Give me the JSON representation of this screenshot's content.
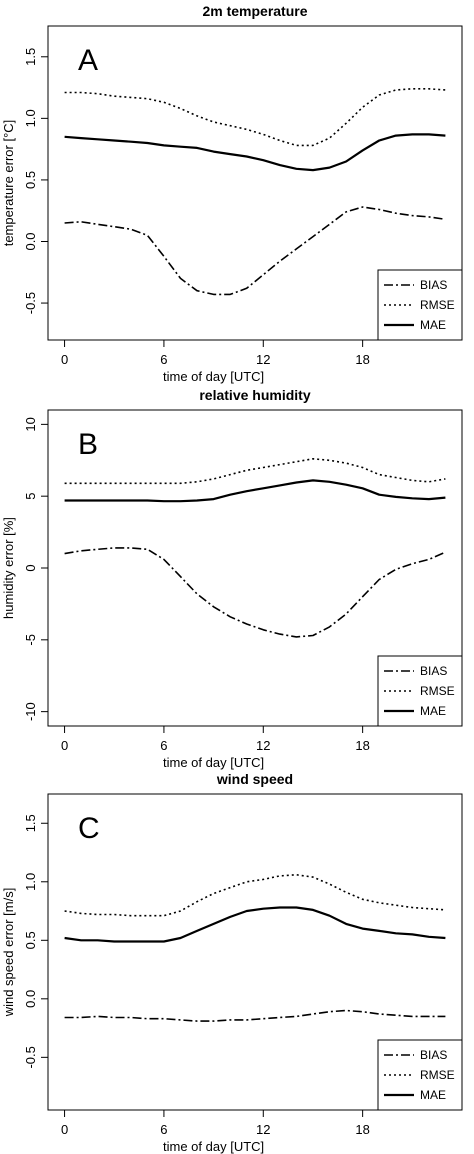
{
  "chart_data": [
    {
      "type": "line",
      "title": "2m temperature",
      "panel_label": "A",
      "xlabel": "time of day [UTC]",
      "ylabel": "temperature error [°C]",
      "xlim": [
        -1,
        24
      ],
      "ylim": [
        -0.8,
        1.75
      ],
      "xticks": [
        0,
        6,
        12,
        18
      ],
      "yticks": [
        -0.5,
        0.0,
        0.5,
        1.0,
        1.5
      ],
      "ytick_labels": [
        "-0.5",
        "0.0",
        "0.5",
        "1.0",
        "1.5"
      ],
      "legend_position": "bottom-right",
      "x": [
        0,
        1,
        2,
        3,
        4,
        5,
        6,
        7,
        8,
        9,
        10,
        11,
        12,
        13,
        14,
        15,
        16,
        17,
        18,
        19,
        20,
        21,
        22,
        23
      ],
      "series": [
        {
          "name": "BIAS",
          "style": "dashdot",
          "values": [
            0.15,
            0.16,
            0.14,
            0.12,
            0.1,
            0.05,
            -0.12,
            -0.3,
            -0.4,
            -0.43,
            -0.43,
            -0.38,
            -0.27,
            -0.16,
            -0.06,
            0.04,
            0.14,
            0.24,
            0.28,
            0.26,
            0.23,
            0.21,
            0.2,
            0.18
          ]
        },
        {
          "name": "RMSE",
          "style": "dotted",
          "values": [
            1.21,
            1.21,
            1.2,
            1.18,
            1.17,
            1.16,
            1.13,
            1.08,
            1.02,
            0.97,
            0.94,
            0.91,
            0.87,
            0.82,
            0.78,
            0.78,
            0.84,
            0.96,
            1.09,
            1.19,
            1.23,
            1.24,
            1.24,
            1.23
          ]
        },
        {
          "name": "MAE",
          "style": "solid",
          "values": [
            0.85,
            0.84,
            0.83,
            0.82,
            0.81,
            0.8,
            0.78,
            0.77,
            0.76,
            0.73,
            0.71,
            0.69,
            0.66,
            0.62,
            0.59,
            0.58,
            0.6,
            0.65,
            0.74,
            0.82,
            0.86,
            0.87,
            0.87,
            0.86
          ]
        }
      ]
    },
    {
      "type": "line",
      "title": "relative humidity",
      "panel_label": "B",
      "xlabel": "time of day [UTC]",
      "ylabel": "humidity error [%]",
      "xlim": [
        -1,
        24
      ],
      "ylim": [
        -11,
        11
      ],
      "xticks": [
        0,
        6,
        12,
        18
      ],
      "yticks": [
        -10,
        -5,
        0,
        5,
        10
      ],
      "ytick_labels": [
        "-10",
        "-5",
        "0",
        "5",
        "10"
      ],
      "legend_position": "bottom-right",
      "x": [
        0,
        1,
        2,
        3,
        4,
        5,
        6,
        7,
        8,
        9,
        10,
        11,
        12,
        13,
        14,
        15,
        16,
        17,
        18,
        19,
        20,
        21,
        22,
        23
      ],
      "series": [
        {
          "name": "BIAS",
          "style": "dashdot",
          "values": [
            1.0,
            1.2,
            1.3,
            1.4,
            1.4,
            1.3,
            0.6,
            -0.6,
            -1.8,
            -2.7,
            -3.4,
            -3.9,
            -4.3,
            -4.6,
            -4.8,
            -4.7,
            -4.1,
            -3.2,
            -2.0,
            -0.8,
            -0.1,
            0.3,
            0.6,
            1.1
          ]
        },
        {
          "name": "RMSE",
          "style": "dotted",
          "values": [
            5.9,
            5.9,
            5.9,
            5.9,
            5.9,
            5.9,
            5.9,
            5.9,
            6.0,
            6.2,
            6.5,
            6.8,
            7.0,
            7.2,
            7.4,
            7.6,
            7.5,
            7.3,
            7.0,
            6.5,
            6.3,
            6.1,
            6.0,
            6.2
          ]
        },
        {
          "name": "MAE",
          "style": "solid",
          "values": [
            4.7,
            4.7,
            4.7,
            4.7,
            4.7,
            4.7,
            4.65,
            4.65,
            4.7,
            4.8,
            5.1,
            5.35,
            5.55,
            5.75,
            5.95,
            6.1,
            6.0,
            5.8,
            5.55,
            5.1,
            4.95,
            4.85,
            4.8,
            4.9
          ]
        }
      ]
    },
    {
      "type": "line",
      "title": "wind speed",
      "panel_label": "C",
      "xlabel": "time of day [UTC]",
      "ylabel": "wind speed error [m/s]",
      "xlim": [
        -1,
        24
      ],
      "ylim": [
        -0.95,
        1.75
      ],
      "xticks": [
        0,
        6,
        12,
        18
      ],
      "yticks": [
        -0.5,
        0.0,
        0.5,
        1.0,
        1.5
      ],
      "ytick_labels": [
        "-0.5",
        "0.0",
        "0.5",
        "1.0",
        "1.5"
      ],
      "legend_position": "bottom-right",
      "x": [
        0,
        1,
        2,
        3,
        4,
        5,
        6,
        7,
        8,
        9,
        10,
        11,
        12,
        13,
        14,
        15,
        16,
        17,
        18,
        19,
        20,
        21,
        22,
        23
      ],
      "series": [
        {
          "name": "BIAS",
          "style": "dashdot",
          "values": [
            -0.16,
            -0.16,
            -0.15,
            -0.16,
            -0.16,
            -0.17,
            -0.17,
            -0.18,
            -0.19,
            -0.19,
            -0.18,
            -0.18,
            -0.17,
            -0.16,
            -0.15,
            -0.13,
            -0.11,
            -0.1,
            -0.11,
            -0.13,
            -0.14,
            -0.15,
            -0.15,
            -0.15
          ]
        },
        {
          "name": "RMSE",
          "style": "dotted",
          "values": [
            0.75,
            0.73,
            0.72,
            0.72,
            0.71,
            0.71,
            0.71,
            0.75,
            0.83,
            0.9,
            0.95,
            1.0,
            1.02,
            1.05,
            1.06,
            1.04,
            0.98,
            0.91,
            0.85,
            0.82,
            0.8,
            0.78,
            0.77,
            0.76
          ]
        },
        {
          "name": "MAE",
          "style": "solid",
          "values": [
            0.52,
            0.5,
            0.5,
            0.49,
            0.49,
            0.49,
            0.49,
            0.52,
            0.58,
            0.64,
            0.7,
            0.75,
            0.77,
            0.78,
            0.78,
            0.76,
            0.71,
            0.64,
            0.6,
            0.58,
            0.56,
            0.55,
            0.53,
            0.52
          ]
        }
      ]
    }
  ]
}
